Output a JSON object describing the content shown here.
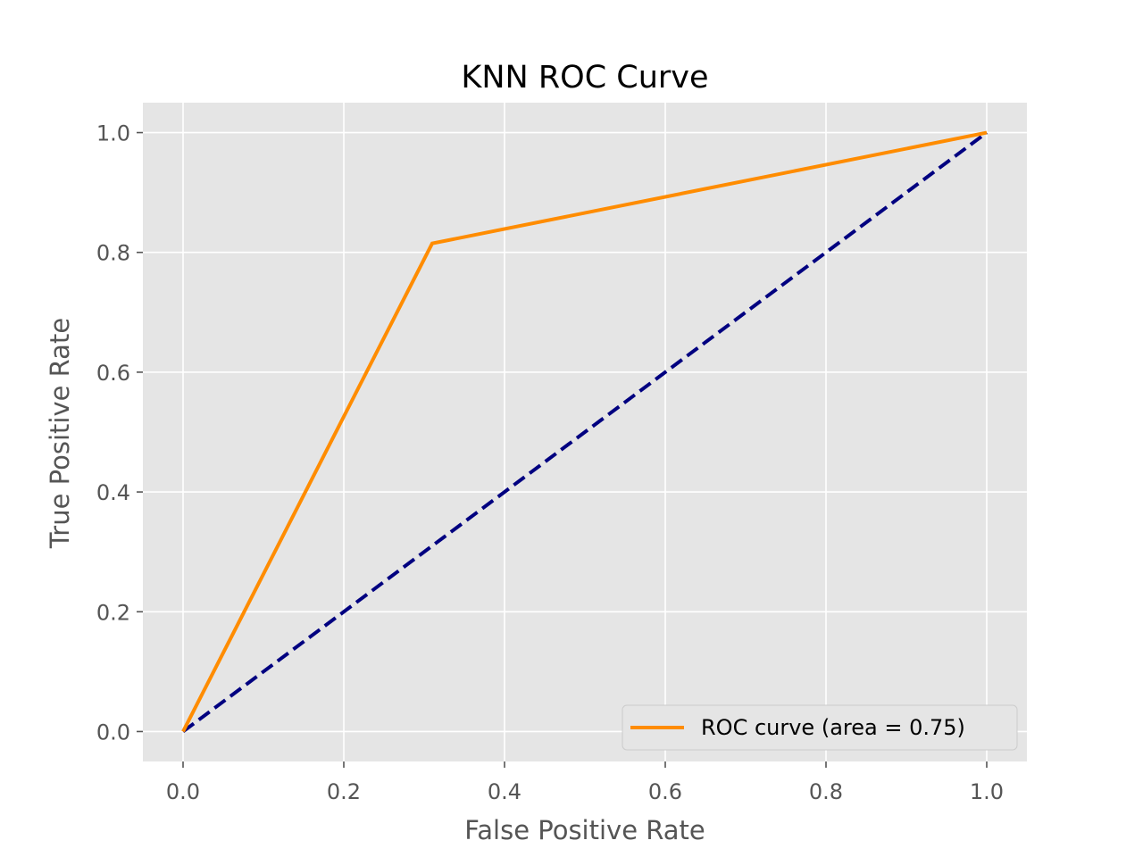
{
  "chart_data": {
    "type": "line",
    "title": "KNN ROC Curve",
    "xlabel": "False Positive Rate",
    "ylabel": "True Positive Rate",
    "xlim": [
      -0.05,
      1.05
    ],
    "ylim": [
      -0.05,
      1.05
    ],
    "xticks": [
      "0.0",
      "0.2",
      "0.4",
      "0.6",
      "0.8",
      "1.0"
    ],
    "yticks": [
      "0.0",
      "0.2",
      "0.4",
      "0.6",
      "0.8",
      "1.0"
    ],
    "grid": true,
    "legend_position": "lower-right",
    "series": [
      {
        "name": "ROC curve (area = 0.75)",
        "color": "#ff8c00",
        "style": "solid",
        "x": [
          0.0,
          0.31,
          1.0
        ],
        "y": [
          0.0,
          0.815,
          1.0
        ]
      },
      {
        "color": "#000080",
        "style": "dashed",
        "x": [
          0.0,
          1.0
        ],
        "y": [
          0.0,
          1.0
        ]
      }
    ],
    "colors": {
      "plot_background": "#e5e5e5",
      "grid": "#ffffff",
      "tick_text": "#555555"
    }
  }
}
